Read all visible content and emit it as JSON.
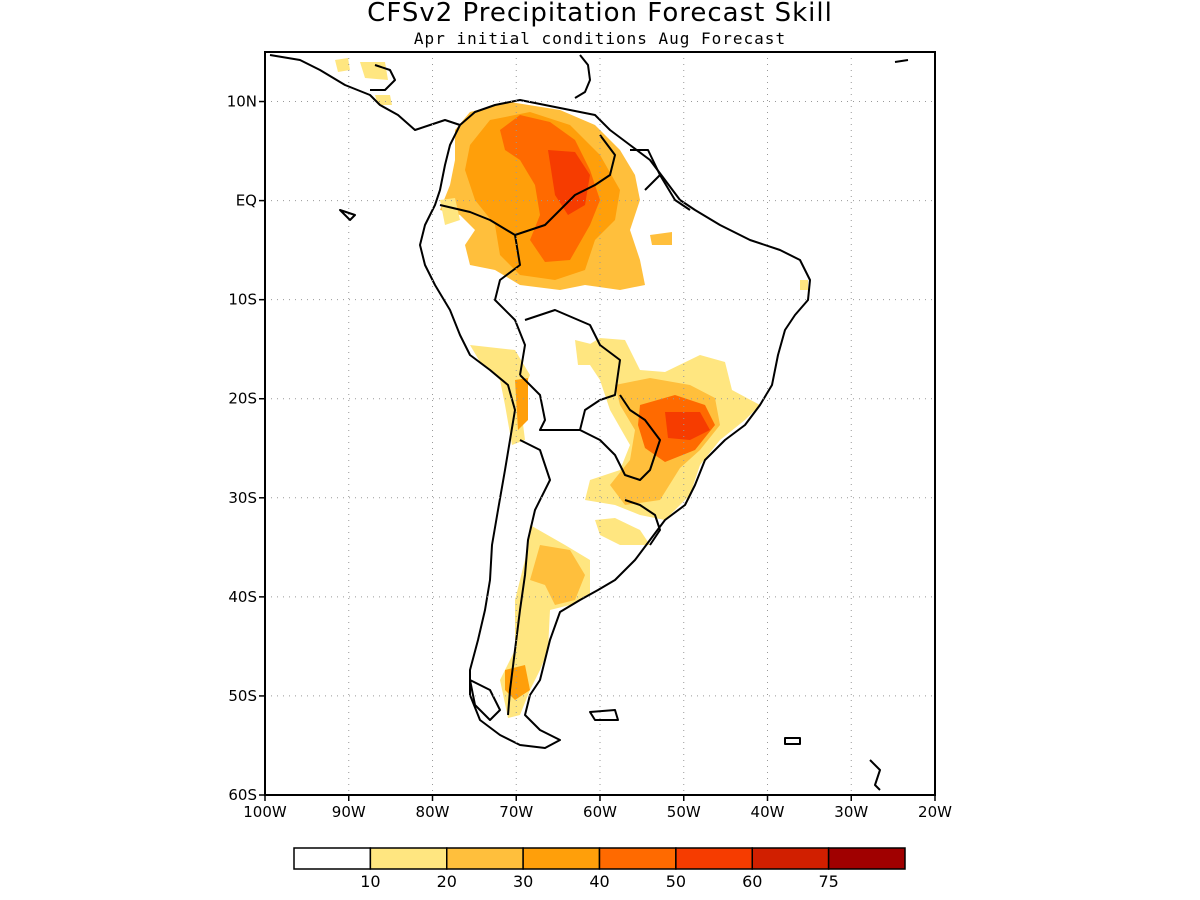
{
  "title": "CFSv2 Precipitation Forecast Skill",
  "subtitle": "Apr initial conditions  Aug Forecast",
  "map": {
    "region": "South America",
    "lon_range": [
      -100,
      -20
    ],
    "lat_range": [
      -60,
      15
    ],
    "lat_ticks": [
      "10N",
      "EQ",
      "10S",
      "20S",
      "30S",
      "40S",
      "50S",
      "60S"
    ],
    "lon_ticks": [
      "100W",
      "90W",
      "80W",
      "70W",
      "60W",
      "50W",
      "40W",
      "30W",
      "20W"
    ],
    "grid": "dotted"
  },
  "colorbar": {
    "colors": [
      "#ffffff",
      "#ffe680",
      "#ffbf3c",
      "#ff9f0a",
      "#ff6a00",
      "#f63c00",
      "#d11f00",
      "#a00000"
    ],
    "labels": [
      "10",
      "20",
      "30",
      "40",
      "50",
      "60",
      "75"
    ]
  }
}
